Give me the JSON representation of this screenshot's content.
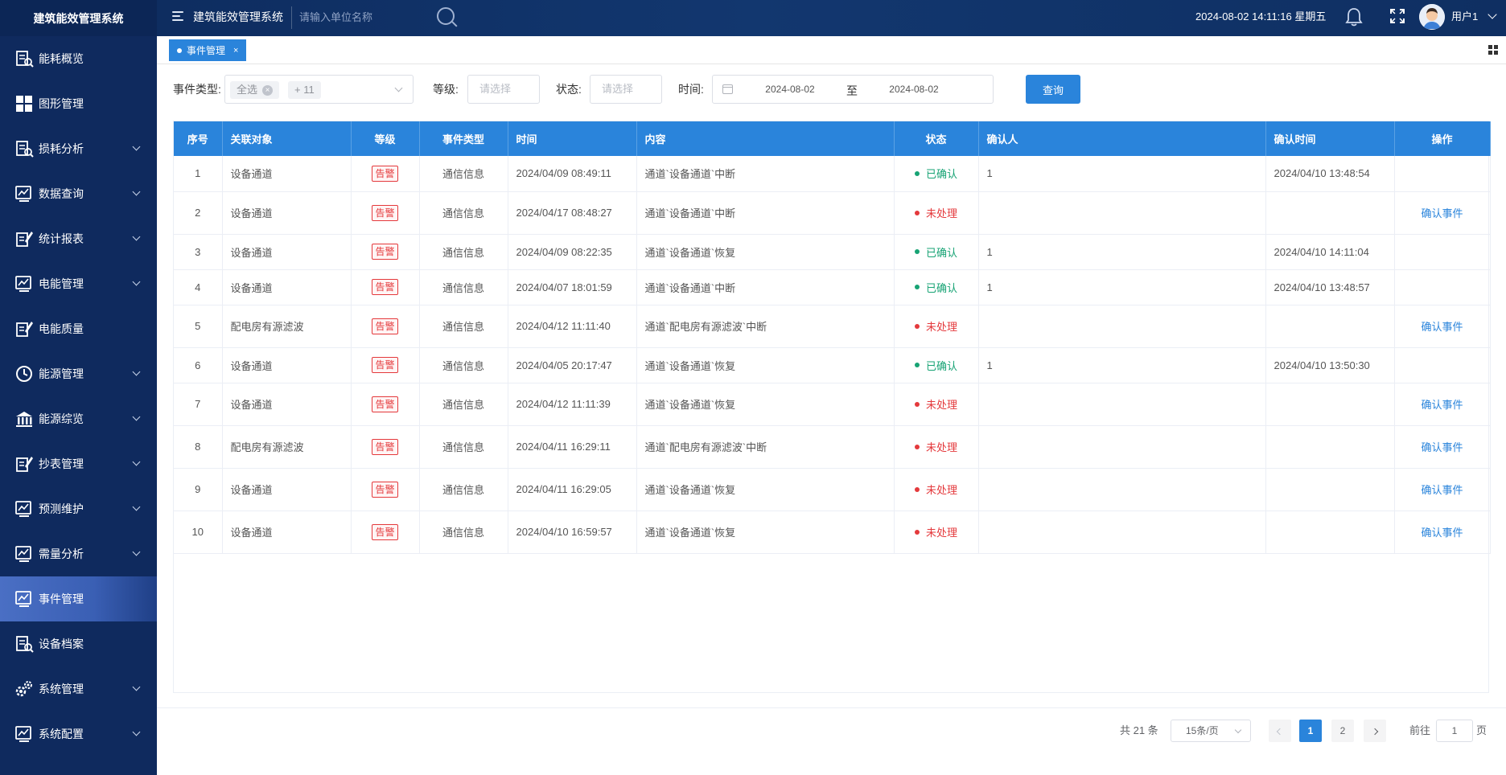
{
  "app": {
    "brand": "建筑能效管理系统",
    "title": "建筑能效管理系统",
    "search_placeholder": "请输入单位名称",
    "datetime": "2024-08-02 14:11:16 星期五",
    "username": "用户1"
  },
  "sidebar": {
    "items": [
      {
        "label": "能耗概览",
        "icon": "energy-overview-icon",
        "expandable": false
      },
      {
        "label": "图形管理",
        "icon": "grid-icon",
        "expandable": false
      },
      {
        "label": "损耗分析",
        "icon": "loss-analysis-icon",
        "expandable": true
      },
      {
        "label": "数据查询",
        "icon": "data-query-icon",
        "expandable": true
      },
      {
        "label": "统计报表",
        "icon": "report-icon",
        "expandable": true
      },
      {
        "label": "电能管理",
        "icon": "power-management-icon",
        "expandable": true
      },
      {
        "label": "电能质量",
        "icon": "power-quality-icon",
        "expandable": false
      },
      {
        "label": "能源管理",
        "icon": "clock-icon",
        "expandable": true
      },
      {
        "label": "能源综览",
        "icon": "bank-icon",
        "expandable": true
      },
      {
        "label": "抄表管理",
        "icon": "meter-reading-icon",
        "expandable": true
      },
      {
        "label": "预测维护",
        "icon": "monitor-icon",
        "expandable": true
      },
      {
        "label": "需量分析",
        "icon": "demand-chart-icon",
        "expandable": true
      },
      {
        "label": "事件管理",
        "icon": "event-chart-icon",
        "expandable": false,
        "active": true
      },
      {
        "label": "设备档案",
        "icon": "device-file-icon",
        "expandable": false
      },
      {
        "label": "系统管理",
        "icon": "gears-icon",
        "expandable": true
      },
      {
        "label": "系统配置",
        "icon": "system-config-icon",
        "expandable": true
      }
    ]
  },
  "tabs": [
    {
      "label": "事件管理",
      "close": "×"
    }
  ],
  "filters": {
    "event_type_label": "事件类型:",
    "event_type_chip": "全选",
    "event_type_more": "+ 11",
    "chip_close": "×",
    "level_label": "等级:",
    "level_placeholder": "请选择",
    "status_label": "状态:",
    "status_placeholder": "请选择",
    "time_label": "时间:",
    "date_start": "2024-08-02",
    "date_to": "至",
    "date_end": "2024-08-02",
    "query_button": "查询"
  },
  "table": {
    "headers": [
      "序号",
      "关联对象",
      "等级",
      "事件类型",
      "时间",
      "内容",
      "状态",
      "确认人",
      "确认时间",
      "操作"
    ],
    "rows": [
      {
        "no": "1",
        "object": "设备通道",
        "level": "告警",
        "type": "通信信息",
        "time": "2024/04/09 08:49:11",
        "content": "通道`设备通道`中断",
        "status": "已确认",
        "ok": true,
        "confirmer": "1",
        "confirm_time": "2024/04/10 13:48:54",
        "action": ""
      },
      {
        "no": "2",
        "object": "设备通道",
        "level": "告警",
        "type": "通信信息",
        "time": "2024/04/17 08:48:27",
        "content": "通道`设备通道`中断",
        "status": "未处理",
        "ok": false,
        "confirmer": "",
        "confirm_time": "",
        "action": "确认事件"
      },
      {
        "no": "3",
        "object": "设备通道",
        "level": "告警",
        "type": "通信信息",
        "time": "2024/04/09 08:22:35",
        "content": "通道`设备通道`恢复",
        "status": "已确认",
        "ok": true,
        "confirmer": "1",
        "confirm_time": "2024/04/10 14:11:04",
        "action": ""
      },
      {
        "no": "4",
        "object": "设备通道",
        "level": "告警",
        "type": "通信信息",
        "time": "2024/04/07 18:01:59",
        "content": "通道`设备通道`中断",
        "status": "已确认",
        "ok": true,
        "confirmer": "1",
        "confirm_time": "2024/04/10 13:48:57",
        "action": ""
      },
      {
        "no": "5",
        "object": "配电房有源滤波",
        "level": "告警",
        "type": "通信信息",
        "time": "2024/04/12 11:11:40",
        "content": "通道`配电房有源滤波`中断",
        "status": "未处理",
        "ok": false,
        "confirmer": "",
        "confirm_time": "",
        "action": "确认事件"
      },
      {
        "no": "6",
        "object": "设备通道",
        "level": "告警",
        "type": "通信信息",
        "time": "2024/04/05 20:17:47",
        "content": "通道`设备通道`恢复",
        "status": "已确认",
        "ok": true,
        "confirmer": "1",
        "confirm_time": "2024/04/10 13:50:30",
        "action": ""
      },
      {
        "no": "7",
        "object": "设备通道",
        "level": "告警",
        "type": "通信信息",
        "time": "2024/04/12 11:11:39",
        "content": "通道`设备通道`恢复",
        "status": "未处理",
        "ok": false,
        "confirmer": "",
        "confirm_time": "",
        "action": "确认事件"
      },
      {
        "no": "8",
        "object": "配电房有源滤波",
        "level": "告警",
        "type": "通信信息",
        "time": "2024/04/11 16:29:11",
        "content": "通道`配电房有源滤波`中断",
        "status": "未处理",
        "ok": false,
        "confirmer": "",
        "confirm_time": "",
        "action": "确认事件"
      },
      {
        "no": "9",
        "object": "设备通道",
        "level": "告警",
        "type": "通信信息",
        "time": "2024/04/11 16:29:05",
        "content": "通道`设备通道`恢复",
        "status": "未处理",
        "ok": false,
        "confirmer": "",
        "confirm_time": "",
        "action": "确认事件"
      },
      {
        "no": "10",
        "object": "设备通道",
        "level": "告警",
        "type": "通信信息",
        "time": "2024/04/10 16:59:57",
        "content": "通道`设备通道`恢复",
        "status": "未处理",
        "ok": false,
        "confirmer": "",
        "confirm_time": "",
        "action": "确认事件"
      }
    ]
  },
  "pagination": {
    "total": "共 21 条",
    "page_size": "15条/页",
    "pages": [
      "1",
      "2"
    ],
    "current": "1",
    "goto_label": "前往",
    "goto_value": "1",
    "page_suffix": "页"
  },
  "colors": {
    "topbar": "#0d2a5c",
    "sidebar": "#0f2a5e",
    "primary": "#2a84db",
    "confirmed": "#17a374",
    "unhandled": "#e4393c"
  }
}
